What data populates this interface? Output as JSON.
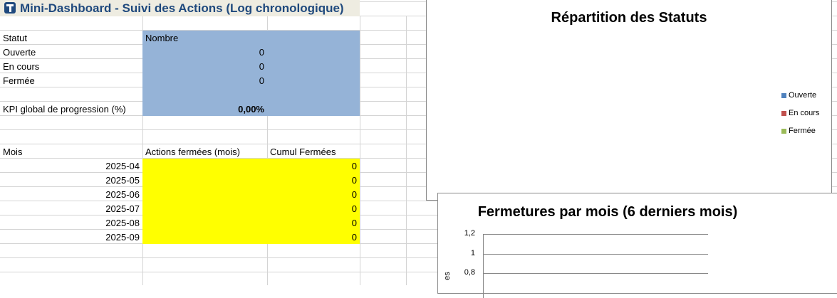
{
  "title": "Mini-Dashboard - Suivi des Actions (Log chronologique)",
  "status_table": {
    "header": [
      "Statut",
      "Nombre"
    ],
    "rows": [
      {
        "label": "Ouverte",
        "value": "0"
      },
      {
        "label": "En cours",
        "value": "0"
      },
      {
        "label": "Fermée",
        "value": "0"
      }
    ],
    "kpi_label": "KPI global de progression (%)",
    "kpi_value": "0,00%"
  },
  "monthly_table": {
    "header": [
      "Mois",
      "Actions fermées (mois)",
      "Cumul Fermées"
    ],
    "rows": [
      {
        "mois": "2025-04",
        "cumul": "0"
      },
      {
        "mois": "2025-05",
        "cumul": "0"
      },
      {
        "mois": "2025-06",
        "cumul": "0"
      },
      {
        "mois": "2025-07",
        "cumul": "0"
      },
      {
        "mois": "2025-08",
        "cumul": "0"
      },
      {
        "mois": "2025-09",
        "cumul": "0"
      }
    ]
  },
  "chart_data": [
    {
      "type": "pie",
      "title": "Répartition des Statuts",
      "legend": [
        "Ouverte",
        "En cours",
        "Fermée"
      ],
      "values": [
        0,
        0,
        0
      ],
      "colors": [
        "#4f81bd",
        "#c0504d",
        "#9bbb59"
      ],
      "legend_placement": "right"
    },
    {
      "type": "bar",
      "title": "Fermetures par mois (6 derniers mois)",
      "y_ticks": [
        "1,2",
        "1",
        "0,8"
      ],
      "ylabel_visible": "es",
      "grid": true
    }
  ]
}
